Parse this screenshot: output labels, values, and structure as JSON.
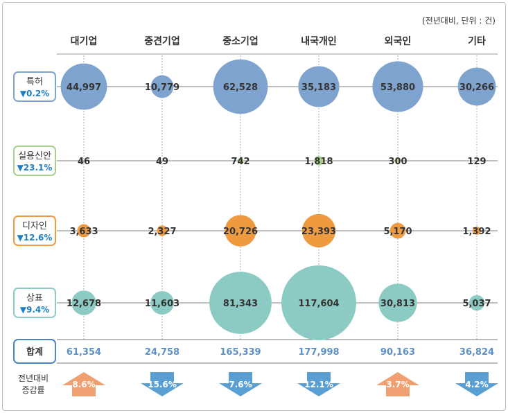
{
  "note": "(전년대비, 단위 : 건)",
  "colors": {
    "특허": "#7ea3cf",
    "실용신안": "#a9d18e",
    "디자인": "#ef9a3f",
    "상표": "#8ccbc3",
    "total_text": "#5b8fc7",
    "total_border": "#4a86c0",
    "arrow_up": "#f0a070",
    "arrow_down": "#5a9fd4"
  },
  "chart_data": {
    "type": "bubble-matrix",
    "columns": [
      "대기업",
      "중견기업",
      "중소기업",
      "내국개인",
      "외국인",
      "기타"
    ],
    "rows": [
      {
        "name": "특허",
        "change": "▼0.2%",
        "values": [
          44997,
          10779,
          62528,
          35183,
          53880,
          30266
        ],
        "labels": [
          "44,997",
          "10,779",
          "62,528",
          "35,183",
          "53,880",
          "30,266"
        ]
      },
      {
        "name": "실용신안",
        "change": "▼23.1%",
        "values": [
          46,
          49,
          742,
          1818,
          300,
          129
        ],
        "labels": [
          "46",
          "49",
          "742",
          "1,818",
          "300",
          "129"
        ]
      },
      {
        "name": "디자인",
        "change": "▼12.6%",
        "values": [
          3633,
          2327,
          20726,
          23393,
          5170,
          1392
        ],
        "labels": [
          "3,633",
          "2,327",
          "20,726",
          "23,393",
          "5,170",
          "1,392"
        ]
      },
      {
        "name": "상표",
        "change": "▼9.4%",
        "values": [
          12678,
          11603,
          81343,
          117604,
          30813,
          5037
        ],
        "labels": [
          "12,678",
          "11,603",
          "81,343",
          "117,604",
          "30,813",
          "5,037"
        ]
      }
    ],
    "total": {
      "label": "합계",
      "values": [
        61354,
        24758,
        165339,
        177998,
        90163,
        36824
      ],
      "labels": [
        "61,354",
        "24,758",
        "165,339",
        "177,998",
        "90,163",
        "36,824"
      ]
    },
    "change_rate": {
      "label_lines": [
        "전년대비",
        "증감률"
      ],
      "values": [
        "8.6%",
        "15.6%",
        "7.6%",
        "12.1%",
        "3.7%",
        "4.2%"
      ],
      "direction": [
        "up",
        "down",
        "down",
        "down",
        "up",
        "down"
      ]
    }
  }
}
